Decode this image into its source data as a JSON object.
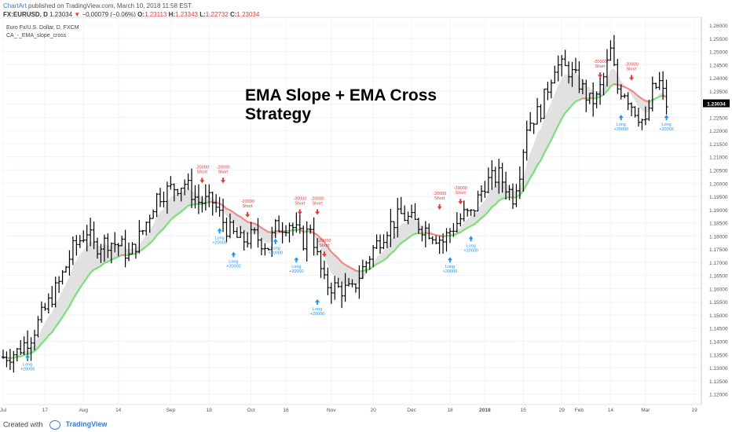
{
  "header": {
    "author": "ChartArt",
    "published_text": "published on TradingView.com, March 10, 2018 11:58 EST"
  },
  "quote": {
    "symbol": "FX:EURUSD, D",
    "price": "1.23034",
    "change": "−0.00079 (−0.06%)",
    "o_label": "O:",
    "o": "1.23113",
    "h_label": "H:",
    "h": "1.23343",
    "l_label": "L:",
    "l": "1.22732",
    "c_label": "C:",
    "c": "1.23034"
  },
  "legend": {
    "instrument": "Euro Fx/U.S. Dollar, D, FXCM",
    "indicator": "CA_-_EMA_slope_cross"
  },
  "footer": {
    "created_with": "Created with",
    "brand": "TradingView"
  },
  "chart_data": {
    "type": "line",
    "title": "EMA Slope + EMA Cross Strategy",
    "title_lines": [
      "EMA Slope + EMA Cross",
      "Strategy"
    ],
    "ylim": [
      1.116,
      1.263
    ],
    "y_ticks": [
      1.12,
      1.125,
      1.13,
      1.135,
      1.14,
      1.145,
      1.15,
      1.155,
      1.16,
      1.165,
      1.17,
      1.175,
      1.18,
      1.185,
      1.19,
      1.195,
      1.2,
      1.205,
      1.21,
      1.215,
      1.22,
      1.225,
      1.23,
      1.235,
      1.24,
      1.245,
      1.25,
      1.255,
      1.26
    ],
    "y_tick_labels": [
      "1.12000",
      "1.12500",
      "1.13000",
      "1.13500",
      "1.14000",
      "1.14500",
      "1.15000",
      "1.15500",
      "1.16000",
      "1.16500",
      "1.17000",
      "1.17500",
      "1.18000",
      "1.18500",
      "1.19000",
      "1.19500",
      "1.20000",
      "1.20500",
      "1.21000",
      "1.21500",
      "1.22000",
      "1.22500",
      "1.23000",
      "1.23500",
      "1.24000",
      "1.24500",
      "1.25000",
      "1.25500",
      "1.26000"
    ],
    "last_price_label": "1.23034",
    "x_range": [
      0,
      200
    ],
    "x_ticks": [
      {
        "x": 0,
        "label": "Jul"
      },
      {
        "x": 12,
        "label": "17"
      },
      {
        "x": 23,
        "label": "Aug"
      },
      {
        "x": 33,
        "label": "14"
      },
      {
        "x": 48,
        "label": "Sep"
      },
      {
        "x": 59,
        "label": "18"
      },
      {
        "x": 71,
        "label": "Oct"
      },
      {
        "x": 81,
        "label": "16"
      },
      {
        "x": 94,
        "label": "Nov"
      },
      {
        "x": 106,
        "label": "20"
      },
      {
        "x": 117,
        "label": "Dec"
      },
      {
        "x": 128,
        "label": "18"
      },
      {
        "x": 138,
        "label": "2018"
      },
      {
        "x": 149,
        "label": "15"
      },
      {
        "x": 160,
        "label": "29"
      },
      {
        "x": 165,
        "label": "Feb"
      },
      {
        "x": 174,
        "label": "14"
      },
      {
        "x": 184,
        "label": "Mar"
      },
      {
        "x": 198,
        "label": "19"
      }
    ],
    "price_waypoints": [
      [
        0,
        1.134
      ],
      [
        4,
        1.136
      ],
      [
        8,
        1.142
      ],
      [
        12,
        1.152
      ],
      [
        16,
        1.162
      ],
      [
        20,
        1.175
      ],
      [
        24,
        1.182
      ],
      [
        26,
        1.176
      ],
      [
        30,
        1.178
      ],
      [
        34,
        1.176
      ],
      [
        36,
        1.172
      ],
      [
        40,
        1.182
      ],
      [
        44,
        1.195
      ],
      [
        48,
        1.198
      ],
      [
        52,
        1.2
      ],
      [
        56,
        1.193
      ],
      [
        60,
        1.193
      ],
      [
        64,
        1.183
      ],
      [
        68,
        1.178
      ],
      [
        72,
        1.18
      ],
      [
        76,
        1.176
      ],
      [
        78,
        1.183
      ],
      [
        82,
        1.185
      ],
      [
        86,
        1.178
      ],
      [
        88,
        1.184
      ],
      [
        90,
        1.172
      ],
      [
        92,
        1.162
      ],
      [
        96,
        1.16
      ],
      [
        100,
        1.159
      ],
      [
        102,
        1.165
      ],
      [
        106,
        1.175
      ],
      [
        110,
        1.183
      ],
      [
        114,
        1.188
      ],
      [
        118,
        1.185
      ],
      [
        122,
        1.182
      ],
      [
        126,
        1.178
      ],
      [
        128,
        1.182
      ],
      [
        132,
        1.188
      ],
      [
        134,
        1.188
      ],
      [
        138,
        1.2
      ],
      [
        142,
        1.203
      ],
      [
        146,
        1.195
      ],
      [
        148,
        1.205
      ],
      [
        150,
        1.222
      ],
      [
        154,
        1.228
      ],
      [
        158,
        1.245
      ],
      [
        162,
        1.243
      ],
      [
        165,
        1.238
      ],
      [
        168,
        1.231
      ],
      [
        170,
        1.232
      ],
      [
        172,
        1.24
      ],
      [
        174,
        1.25
      ],
      [
        176,
        1.236
      ],
      [
        178,
        1.235
      ],
      [
        180,
        1.23
      ],
      [
        182,
        1.226
      ],
      [
        184,
        1.222
      ],
      [
        186,
        1.235
      ],
      [
        188,
        1.238
      ],
      [
        190,
        1.23
      ]
    ],
    "signals": [
      {
        "x": 7,
        "kind": "long",
        "label": "Long",
        "amount": "+20000",
        "price": 1.135
      },
      {
        "x": 57,
        "kind": "short",
        "label": "Short",
        "amount": "-20000",
        "price": 1.2
      },
      {
        "x": 63,
        "kind": "short",
        "label": "Short",
        "amount": "-20000",
        "price": 1.2
      },
      {
        "x": 62,
        "kind": "long",
        "label": "Long",
        "amount": "+20000",
        "price": 1.183
      },
      {
        "x": 70,
        "kind": "short",
        "label": "Short",
        "amount": "-20000",
        "price": 1.187
      },
      {
        "x": 66,
        "kind": "long",
        "label": "Long",
        "amount": "+20000",
        "price": 1.174
      },
      {
        "x": 78,
        "kind": "long",
        "label": "Long",
        "amount": "+20000",
        "price": 1.179
      },
      {
        "x": 85,
        "kind": "short",
        "label": "Short",
        "amount": "-20000",
        "price": 1.188
      },
      {
        "x": 84,
        "kind": "long",
        "label": "Long",
        "amount": "+20000",
        "price": 1.172
      },
      {
        "x": 90,
        "kind": "short",
        "label": "Short",
        "amount": "-20000",
        "price": 1.188
      },
      {
        "x": 92,
        "kind": "short",
        "label": "Short",
        "amount": "-20000",
        "price": 1.172
      },
      {
        "x": 90,
        "kind": "long",
        "label": "Long",
        "amount": "+20000",
        "price": 1.156
      },
      {
        "x": 125,
        "kind": "short",
        "label": "Short",
        "amount": "-20000",
        "price": 1.19
      },
      {
        "x": 131,
        "kind": "short",
        "label": "Short",
        "amount": "-20000",
        "price": 1.192
      },
      {
        "x": 128,
        "kind": "long",
        "label": "Long",
        "amount": "+20000",
        "price": 1.172
      },
      {
        "x": 134,
        "kind": "long",
        "label": "Long",
        "amount": "+20000",
        "price": 1.18
      },
      {
        "x": 171,
        "kind": "short",
        "label": "Short",
        "amount": "-20000",
        "price": 1.24
      },
      {
        "x": 180,
        "kind": "short",
        "label": "Short",
        "amount": "-20000",
        "price": 1.239
      },
      {
        "x": 177,
        "kind": "long",
        "label": "Long",
        "amount": "+20000",
        "price": 1.226
      },
      {
        "x": 190,
        "kind": "long",
        "label": "Long",
        "amount": "+20000",
        "price": 1.226
      }
    ],
    "colors": {
      "candle": "#000000",
      "ema_up": "#7be07b",
      "ema_down": "#f08a8a",
      "fill": "#d9d9d9",
      "long": "#2196f3",
      "short": "#e53935",
      "grid": "#f0f3fa",
      "axis_text": "#555555"
    }
  }
}
